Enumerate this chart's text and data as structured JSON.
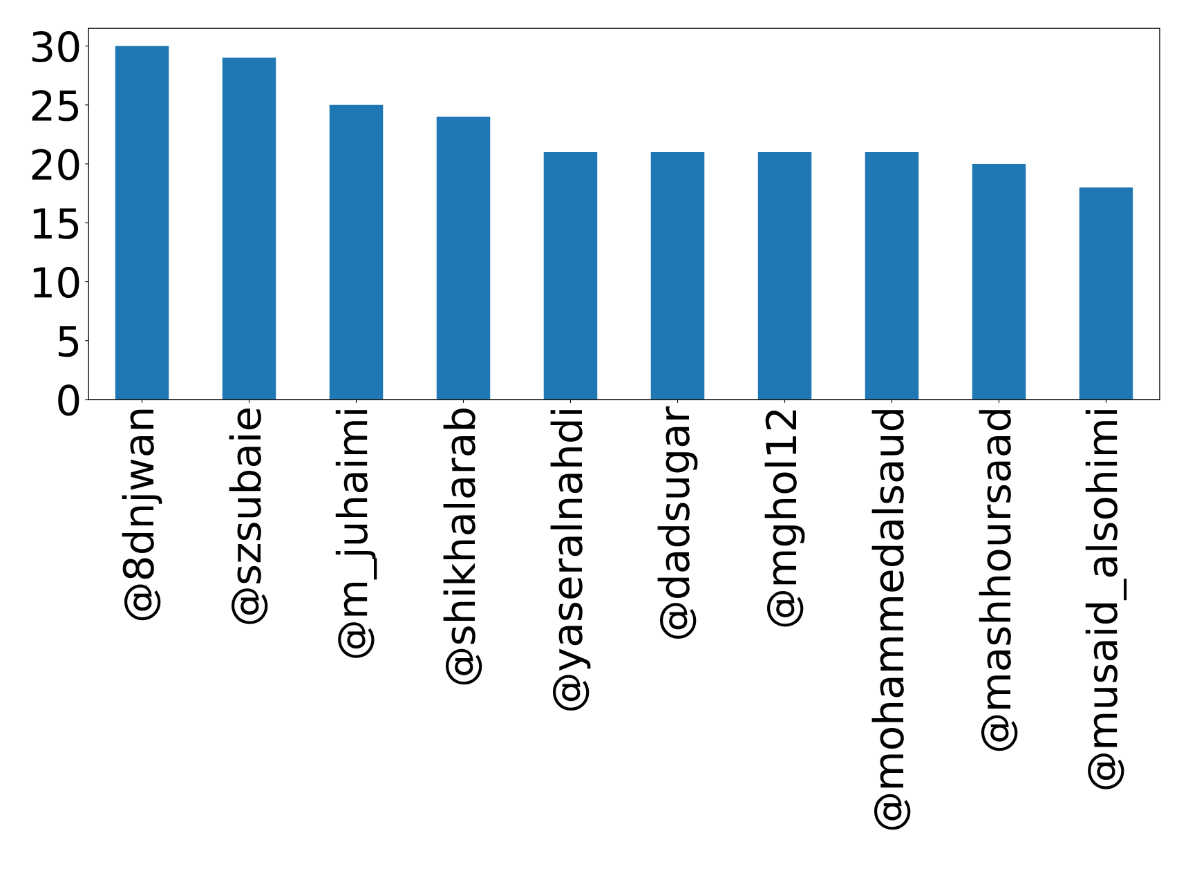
{
  "chart_data": {
    "type": "bar",
    "categories": [
      "@8dnjwan",
      "@szsubaie",
      "@m_juhaimi",
      "@shikhalarab",
      "@yaseralnahdi",
      "@dadsugar",
      "@mghol12",
      "@mohammedalsaud",
      "@mashhoursaad",
      "@musaid_alsohimi"
    ],
    "values": [
      30,
      29,
      25,
      24,
      21,
      21,
      21,
      21,
      20,
      18
    ],
    "color": "#1f77b4",
    "ylim": [
      0,
      31.5
    ],
    "yticks": [
      0,
      5,
      10,
      15,
      20,
      25,
      30
    ],
    "grid": false,
    "legend": false
  }
}
